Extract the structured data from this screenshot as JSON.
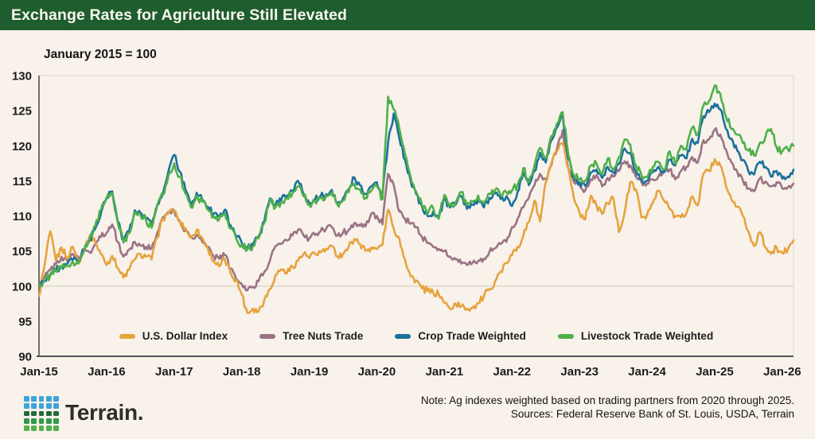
{
  "header": {
    "title": "Exchange Rates for Agriculture Still Elevated",
    "bg_color": "#1E5D2D"
  },
  "chart_data": {
    "type": "line",
    "subtitle": "January 2015 = 100",
    "x_interval": "monthly",
    "x_start": "Jan-2015",
    "x_end": "Mar-2026",
    "ylim": [
      90,
      130
    ],
    "baseline_value": 100,
    "grid": "single reference line at 100 only",
    "legend_position": "inside bottom center",
    "y_ticks": [
      90,
      95,
      100,
      105,
      110,
      115,
      120,
      125,
      130
    ],
    "x_ticks": [
      "Jan-15",
      "Jan-16",
      "Jan-17",
      "Jan-18",
      "Jan-19",
      "Jan-20",
      "Jan-21",
      "Jan-22",
      "Jan-23",
      "Jan-24",
      "Jan-25",
      "Jan-26"
    ],
    "series": [
      {
        "id": "usd",
        "name": "U.S. Dollar Index",
        "color": "#E6A33E",
        "wiggle": 0.5,
        "values": [
          98.6,
          103.0,
          107.8,
          103.6,
          105.5,
          104.0,
          105.6,
          103.4,
          105.2,
          107.2,
          106.2,
          104.6,
          103.0,
          104.3,
          102.6,
          101.2,
          102.3,
          103.8,
          104.6,
          104.2,
          103.8,
          106.9,
          109.6,
          110.4,
          110.7,
          109.2,
          108.3,
          106.9,
          108.0,
          106.8,
          105.4,
          103.6,
          102.8,
          103.8,
          101.9,
          100.9,
          98.8,
          96.2,
          96.8,
          96.4,
          98.0,
          99.6,
          101.6,
          102.4,
          101.8,
          102.8,
          103.6,
          104.6,
          104.0,
          104.6,
          104.8,
          105.3,
          105.7,
          104.2,
          104.6,
          105.6,
          106.7,
          106.0,
          105.0,
          105.5,
          105.3,
          105.9,
          110.9,
          108.2,
          106.8,
          103.8,
          101.4,
          100.8,
          99.7,
          99.3,
          99.1,
          98.8,
          97.6,
          96.8,
          97.5,
          97.1,
          96.8,
          96.9,
          97.6,
          98.5,
          99.6,
          100.7,
          102.1,
          103.3,
          104.4,
          105.6,
          107.1,
          109.1,
          112.2,
          109.2,
          114.8,
          117.5,
          119.2,
          120.3,
          116.8,
          112.5,
          110.5,
          109.5,
          112.9,
          111.5,
          110.3,
          111.8,
          112.6,
          107.7,
          110.5,
          114.8,
          113.8,
          109.8,
          110.2,
          111.8,
          113.6,
          112.2,
          111.0,
          110.0,
          109.8,
          110.4,
          112.8,
          111.5,
          116.0,
          116.4,
          118.1,
          117.2,
          114.2,
          112.3,
          111.3,
          110.0,
          107.8,
          105.7,
          107.7,
          105.5,
          104.6,
          105.5,
          104.7,
          105.2,
          106.5
        ]
      },
      {
        "id": "treenuts",
        "name": "Tree Nuts Trade",
        "color": "#9A7384",
        "wiggle": 0.45,
        "values": [
          100.0,
          101.3,
          102.3,
          103.1,
          104.2,
          103.6,
          104.6,
          103.9,
          105.2,
          104.8,
          106.0,
          107.0,
          107.6,
          108.8,
          106.3,
          104.2,
          105.2,
          106.3,
          105.8,
          105.6,
          105.4,
          107.6,
          109.8,
          110.6,
          110.8,
          109.3,
          107.9,
          107.0,
          107.3,
          106.3,
          105.6,
          104.3,
          103.9,
          104.4,
          102.5,
          101.0,
          100.3,
          99.4,
          99.9,
          100.7,
          102.0,
          103.6,
          105.7,
          106.0,
          106.5,
          107.2,
          108.0,
          107.2,
          106.8,
          107.3,
          107.8,
          108.2,
          108.4,
          107.2,
          107.6,
          108.0,
          109.0,
          108.6,
          108.5,
          110.3,
          110.0,
          108.8,
          116.0,
          114.4,
          110.6,
          109.6,
          108.9,
          108.4,
          107.0,
          106.1,
          105.6,
          105.3,
          105.0,
          104.2,
          103.8,
          103.2,
          103.0,
          103.3,
          103.6,
          103.9,
          104.9,
          105.4,
          106.0,
          106.3,
          108.4,
          109.6,
          111.2,
          112.6,
          114.4,
          116.0,
          115.2,
          117.2,
          119.6,
          122.2,
          116.8,
          114.8,
          114.4,
          113.6,
          115.2,
          115.8,
          114.2,
          115.4,
          115.6,
          116.4,
          117.8,
          117.2,
          115.6,
          114.8,
          114.6,
          115.2,
          115.6,
          116.4,
          116.6,
          115.2,
          116.4,
          117.0,
          118.4,
          117.6,
          120.8,
          120.9,
          122.3,
          121.6,
          119.5,
          117.6,
          116.3,
          115.1,
          113.9,
          113.5,
          115.3,
          114.9,
          114.2,
          114.8,
          113.9,
          114.1,
          114.6
        ]
      },
      {
        "id": "crop",
        "name": "Crop Trade Weighted",
        "color": "#1B719B",
        "wiggle": 0.5,
        "values": [
          100.0,
          100.9,
          101.7,
          102.4,
          102.8,
          103.1,
          103.7,
          103.4,
          105.1,
          106.6,
          108.2,
          110.4,
          112.6,
          113.5,
          109.2,
          106.5,
          107.8,
          110.8,
          110.5,
          109.7,
          108.6,
          111.6,
          113.2,
          116.4,
          118.7,
          116.3,
          113.8,
          111.5,
          113.3,
          112.3,
          111.3,
          110.3,
          110.0,
          110.9,
          108.7,
          107.2,
          106.2,
          105.4,
          105.9,
          107.0,
          109.2,
          112.5,
          111.6,
          112.2,
          112.9,
          113.6,
          115.0,
          113.1,
          111.9,
          112.3,
          112.8,
          113.1,
          113.7,
          111.9,
          112.5,
          113.8,
          115.5,
          114.4,
          113.1,
          114.2,
          114.8,
          113.1,
          120.5,
          124.6,
          121.0,
          118.0,
          115.0,
          113.1,
          111.4,
          110.0,
          110.6,
          109.8,
          112.4,
          111.2,
          111.6,
          112.8,
          111.0,
          111.6,
          112.2,
          111.2,
          112.6,
          113.2,
          112.4,
          112.8,
          111.4,
          113.4,
          116.2,
          114.4,
          116.4,
          119.0,
          117.6,
          120.8,
          122.6,
          124.3,
          118.2,
          115.4,
          114.8,
          114.3,
          116.2,
          116.6,
          115.4,
          117.0,
          116.2,
          117.4,
          119.6,
          119.0,
          116.4,
          115.2,
          115.0,
          116.2,
          117.0,
          116.2,
          118.0,
          117.2,
          118.6,
          118.2,
          121.0,
          120.4,
          124.2,
          124.8,
          126.0,
          125.2,
          122.4,
          121.0,
          119.3,
          118.0,
          116.3,
          115.9,
          117.7,
          117.0,
          115.6,
          116.4,
          115.3,
          115.6,
          116.6
        ]
      },
      {
        "id": "livestock",
        "name": "Livestock Trade Weighted",
        "color": "#4FB04A",
        "wiggle": 0.55,
        "values": [
          100.0,
          100.8,
          101.5,
          102.2,
          102.6,
          103.0,
          103.5,
          103.2,
          105.0,
          106.8,
          108.6,
          110.8,
          112.4,
          113.3,
          109.0,
          106.2,
          107.5,
          110.5,
          110.2,
          109.4,
          108.3,
          111.4,
          113.0,
          115.8,
          117.5,
          115.6,
          113.2,
          111.2,
          112.9,
          112.0,
          110.9,
          110.0,
          109.5,
          110.4,
          108.2,
          106.8,
          105.9,
          105.2,
          105.7,
          106.8,
          109.0,
          112.2,
          111.2,
          111.9,
          112.6,
          113.2,
          114.2,
          112.8,
          111.6,
          112.0,
          112.5,
          112.9,
          113.4,
          111.6,
          112.2,
          113.4,
          114.6,
          113.8,
          112.6,
          113.6,
          114.2,
          112.4,
          127.0,
          125.2,
          122.4,
          118.8,
          115.6,
          113.4,
          111.6,
          110.3,
          111.2,
          109.6,
          113.0,
          111.6,
          111.9,
          113.4,
          111.5,
          112.0,
          112.9,
          111.8,
          113.2,
          113.7,
          112.9,
          113.4,
          113.6,
          114.4,
          116.8,
          114.8,
          117.2,
          119.7,
          118.2,
          121.4,
          123.2,
          124.8,
          118.8,
          115.8,
          115.2,
          115.0,
          117.2,
          117.5,
          116.0,
          118.2,
          116.6,
          118.4,
          120.9,
          120.2,
          117.2,
          115.8,
          115.5,
          117.0,
          117.7,
          116.6,
          119.2,
          117.4,
          120.0,
          119.4,
          122.6,
          121.6,
          125.7,
          126.4,
          128.6,
          127.4,
          124.2,
          122.4,
          121.6,
          120.4,
          119.3,
          118.6,
          120.4,
          121.2,
          122.4,
          119.8,
          119.2,
          119.5,
          120.0
        ]
      }
    ],
    "draw_order": [
      1,
      0,
      2,
      3
    ]
  },
  "legend": {
    "items": [
      {
        "label": "U.S. Dollar Index",
        "color": "#E6A33E"
      },
      {
        "label": "Tree Nuts Trade",
        "color": "#9A7384"
      },
      {
        "label": "Crop Trade Weighted",
        "color": "#1B719B"
      },
      {
        "label": "Livestock Trade Weighted",
        "color": "#4FB04A"
      }
    ]
  },
  "footer": {
    "brand": "Terrain.",
    "note_line1": "Note: Ag indexes weighted based on trading partners from 2020 through 2025.",
    "note_line2": "Sources: Federal Reserve Bank of St. Louis, USDA, Terrain",
    "logo_row_colors": [
      "#3FA3DC",
      "#3FA3DC",
      "#20693B",
      "#33984A",
      "#55B14B"
    ]
  }
}
